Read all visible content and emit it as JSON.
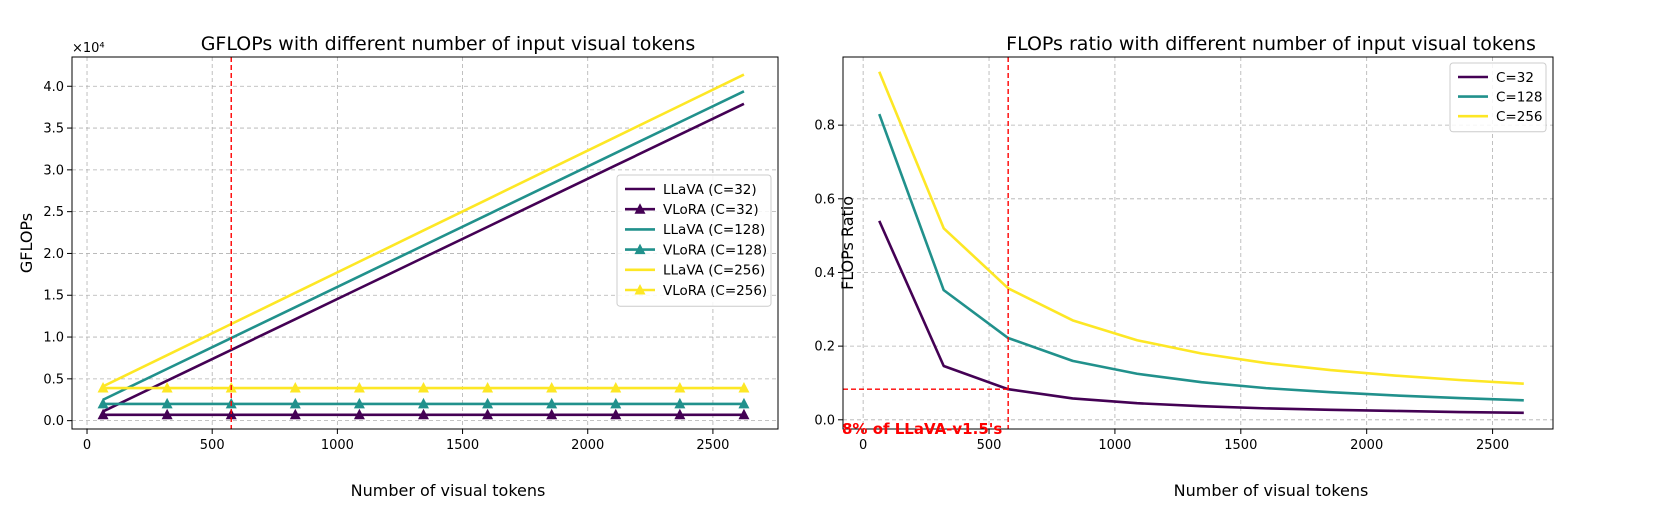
{
  "colors": {
    "c32": "#440154",
    "c128": "#21918c",
    "c256": "#fde725",
    "ref": "#ff0000"
  },
  "chart_data": [
    {
      "type": "line",
      "title": "GFLOPs with different number of input visual tokens",
      "xlabel": "Number of visual tokens",
      "ylabel": "GFLOPs",
      "y_multiplier_label": "×10⁴",
      "xlim": [
        -60,
        2760
      ],
      "ylim": [
        -1000,
        43500
      ],
      "xticks": [
        0,
        500,
        1000,
        1500,
        2000,
        2500
      ],
      "yticks": [
        0,
        5000,
        10000,
        15000,
        20000,
        25000,
        30000,
        35000,
        40000
      ],
      "ytick_labels": [
        "0.0",
        "0.5",
        "1.0",
        "1.5",
        "2.0",
        "2.5",
        "3.0",
        "3.5",
        "4.0"
      ],
      "grid": true,
      "legend_position": "center-right",
      "vline_x": 576,
      "x": [
        64,
        320,
        576,
        832,
        1088,
        1344,
        1600,
        1856,
        2112,
        2368,
        2624
      ],
      "series": [
        {
          "name": "LLaVA (C=32)",
          "color_key": "c32",
          "marker": "none",
          "values": [
            1100,
            4780,
            8460,
            12140,
            15820,
            19500,
            23180,
            26860,
            30540,
            34220,
            37900
          ]
        },
        {
          "name": "VLoRA (C=32)",
          "color_key": "c32",
          "marker": "triangle",
          "values": [
            700,
            700,
            700,
            700,
            700,
            700,
            700,
            700,
            700,
            700,
            700
          ]
        },
        {
          "name": "LLaVA (C=128)",
          "color_key": "c128",
          "marker": "none",
          "values": [
            2500,
            6190,
            9880,
            13570,
            17260,
            20950,
            24640,
            28330,
            32020,
            35710,
            39400
          ]
        },
        {
          "name": "VLoRA (C=128)",
          "color_key": "c128",
          "marker": "triangle",
          "values": [
            2000,
            2000,
            2000,
            2000,
            2000,
            2000,
            2000,
            2000,
            2000,
            2000,
            2000
          ]
        },
        {
          "name": "LLaVA (C=256)",
          "color_key": "c256",
          "marker": "none",
          "values": [
            4100,
            7830,
            11560,
            15290,
            19020,
            22750,
            26480,
            30210,
            33940,
            37670,
            41400
          ]
        },
        {
          "name": "VLoRA (C=256)",
          "color_key": "c256",
          "marker": "triangle",
          "values": [
            3900,
            3900,
            3900,
            3900,
            3900,
            3900,
            3900,
            3900,
            3900,
            3900,
            3900
          ]
        }
      ]
    },
    {
      "type": "line",
      "title": "FLOPs ratio with different number of input visual tokens",
      "xlabel": "Number of visual tokens",
      "ylabel": "FLOPs Ratio",
      "xlim": [
        -80,
        2740
      ],
      "ylim": [
        -0.025,
        0.985
      ],
      "xticks": [
        0,
        500,
        1000,
        1500,
        2000,
        2500
      ],
      "yticks": [
        0.0,
        0.2,
        0.4,
        0.6,
        0.8
      ],
      "ytick_labels": [
        "0.0",
        "0.2",
        "0.4",
        "0.6",
        "0.8"
      ],
      "grid": true,
      "legend_position": "top-right",
      "vline_x": 576,
      "hline_y": 0.083,
      "annotation": "8% of LLaVA-v1.5's",
      "x": [
        64,
        320,
        576,
        832,
        1088,
        1344,
        1600,
        1856,
        2112,
        2368,
        2624
      ],
      "series": [
        {
          "name": "C=32",
          "color_key": "c32",
          "values": [
            0.54,
            0.146,
            0.083,
            0.058,
            0.045,
            0.037,
            0.031,
            0.027,
            0.024,
            0.021,
            0.019
          ]
        },
        {
          "name": "C=128",
          "color_key": "c128",
          "values": [
            0.83,
            0.352,
            0.222,
            0.16,
            0.125,
            0.102,
            0.086,
            0.075,
            0.066,
            0.059,
            0.053
          ]
        },
        {
          "name": "C=256",
          "color_key": "c256",
          "values": [
            0.945,
            0.52,
            0.357,
            0.27,
            0.216,
            0.18,
            0.154,
            0.135,
            0.12,
            0.108,
            0.098
          ]
        }
      ]
    }
  ]
}
